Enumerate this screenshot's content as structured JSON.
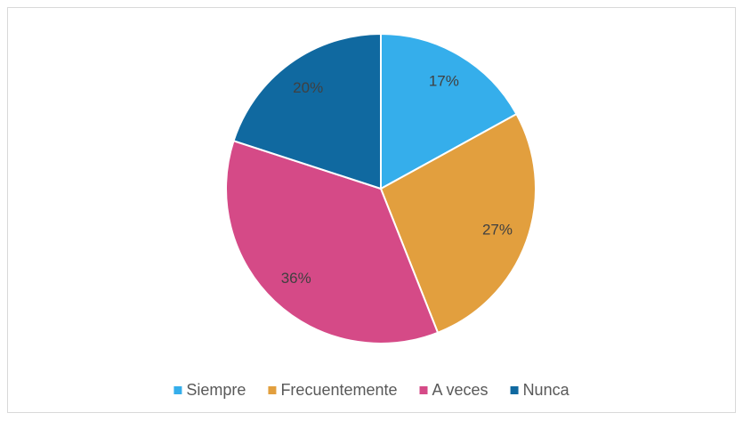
{
  "chart_data": {
    "type": "pie",
    "categories": [
      "Siempre",
      "Frecuentemente",
      "A veces",
      "Nunca"
    ],
    "values": [
      17,
      27,
      36,
      20
    ],
    "value_labels": [
      "17%",
      "27%",
      "36%",
      "20%"
    ],
    "colors": [
      "#35aeeb",
      "#e29f3e",
      "#d54a87",
      "#1069a0"
    ],
    "legend": "bottom"
  }
}
